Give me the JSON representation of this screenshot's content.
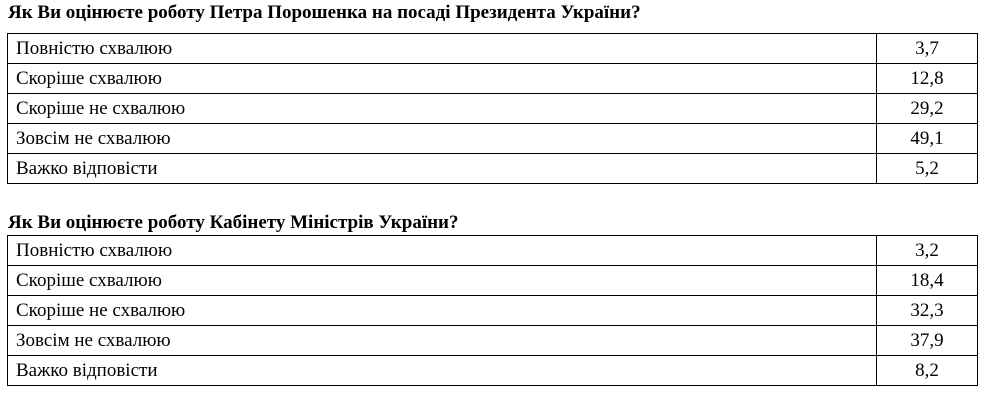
{
  "sections": [
    {
      "title": "Як Ви оцінюєте роботу Петра Порошенка на посаді Президента України?",
      "rows": [
        {
          "label": "Повністю схвалюю",
          "value": "3,7"
        },
        {
          "label": "Скоріше схвалюю",
          "value": "12,8"
        },
        {
          "label": "Скоріше не схвалюю",
          "value": "29,2"
        },
        {
          "label": "Зовсім не схвалюю",
          "value": "49,1"
        },
        {
          "label": "Важко відповісти",
          "value": "5,2"
        }
      ]
    },
    {
      "title": "Як Ви оцінюєте роботу Кабінету Міністрів України?",
      "rows": [
        {
          "label": "Повністю схвалюю",
          "value": "3,2"
        },
        {
          "label": "Скоріше схвалюю",
          "value": "18,4"
        },
        {
          "label": "Скоріше не схвалюю",
          "value": "32,3"
        },
        {
          "label": "Зовсім не схвалюю",
          "value": "37,9"
        },
        {
          "label": "Важко відповісти",
          "value": "8,2"
        }
      ]
    }
  ]
}
